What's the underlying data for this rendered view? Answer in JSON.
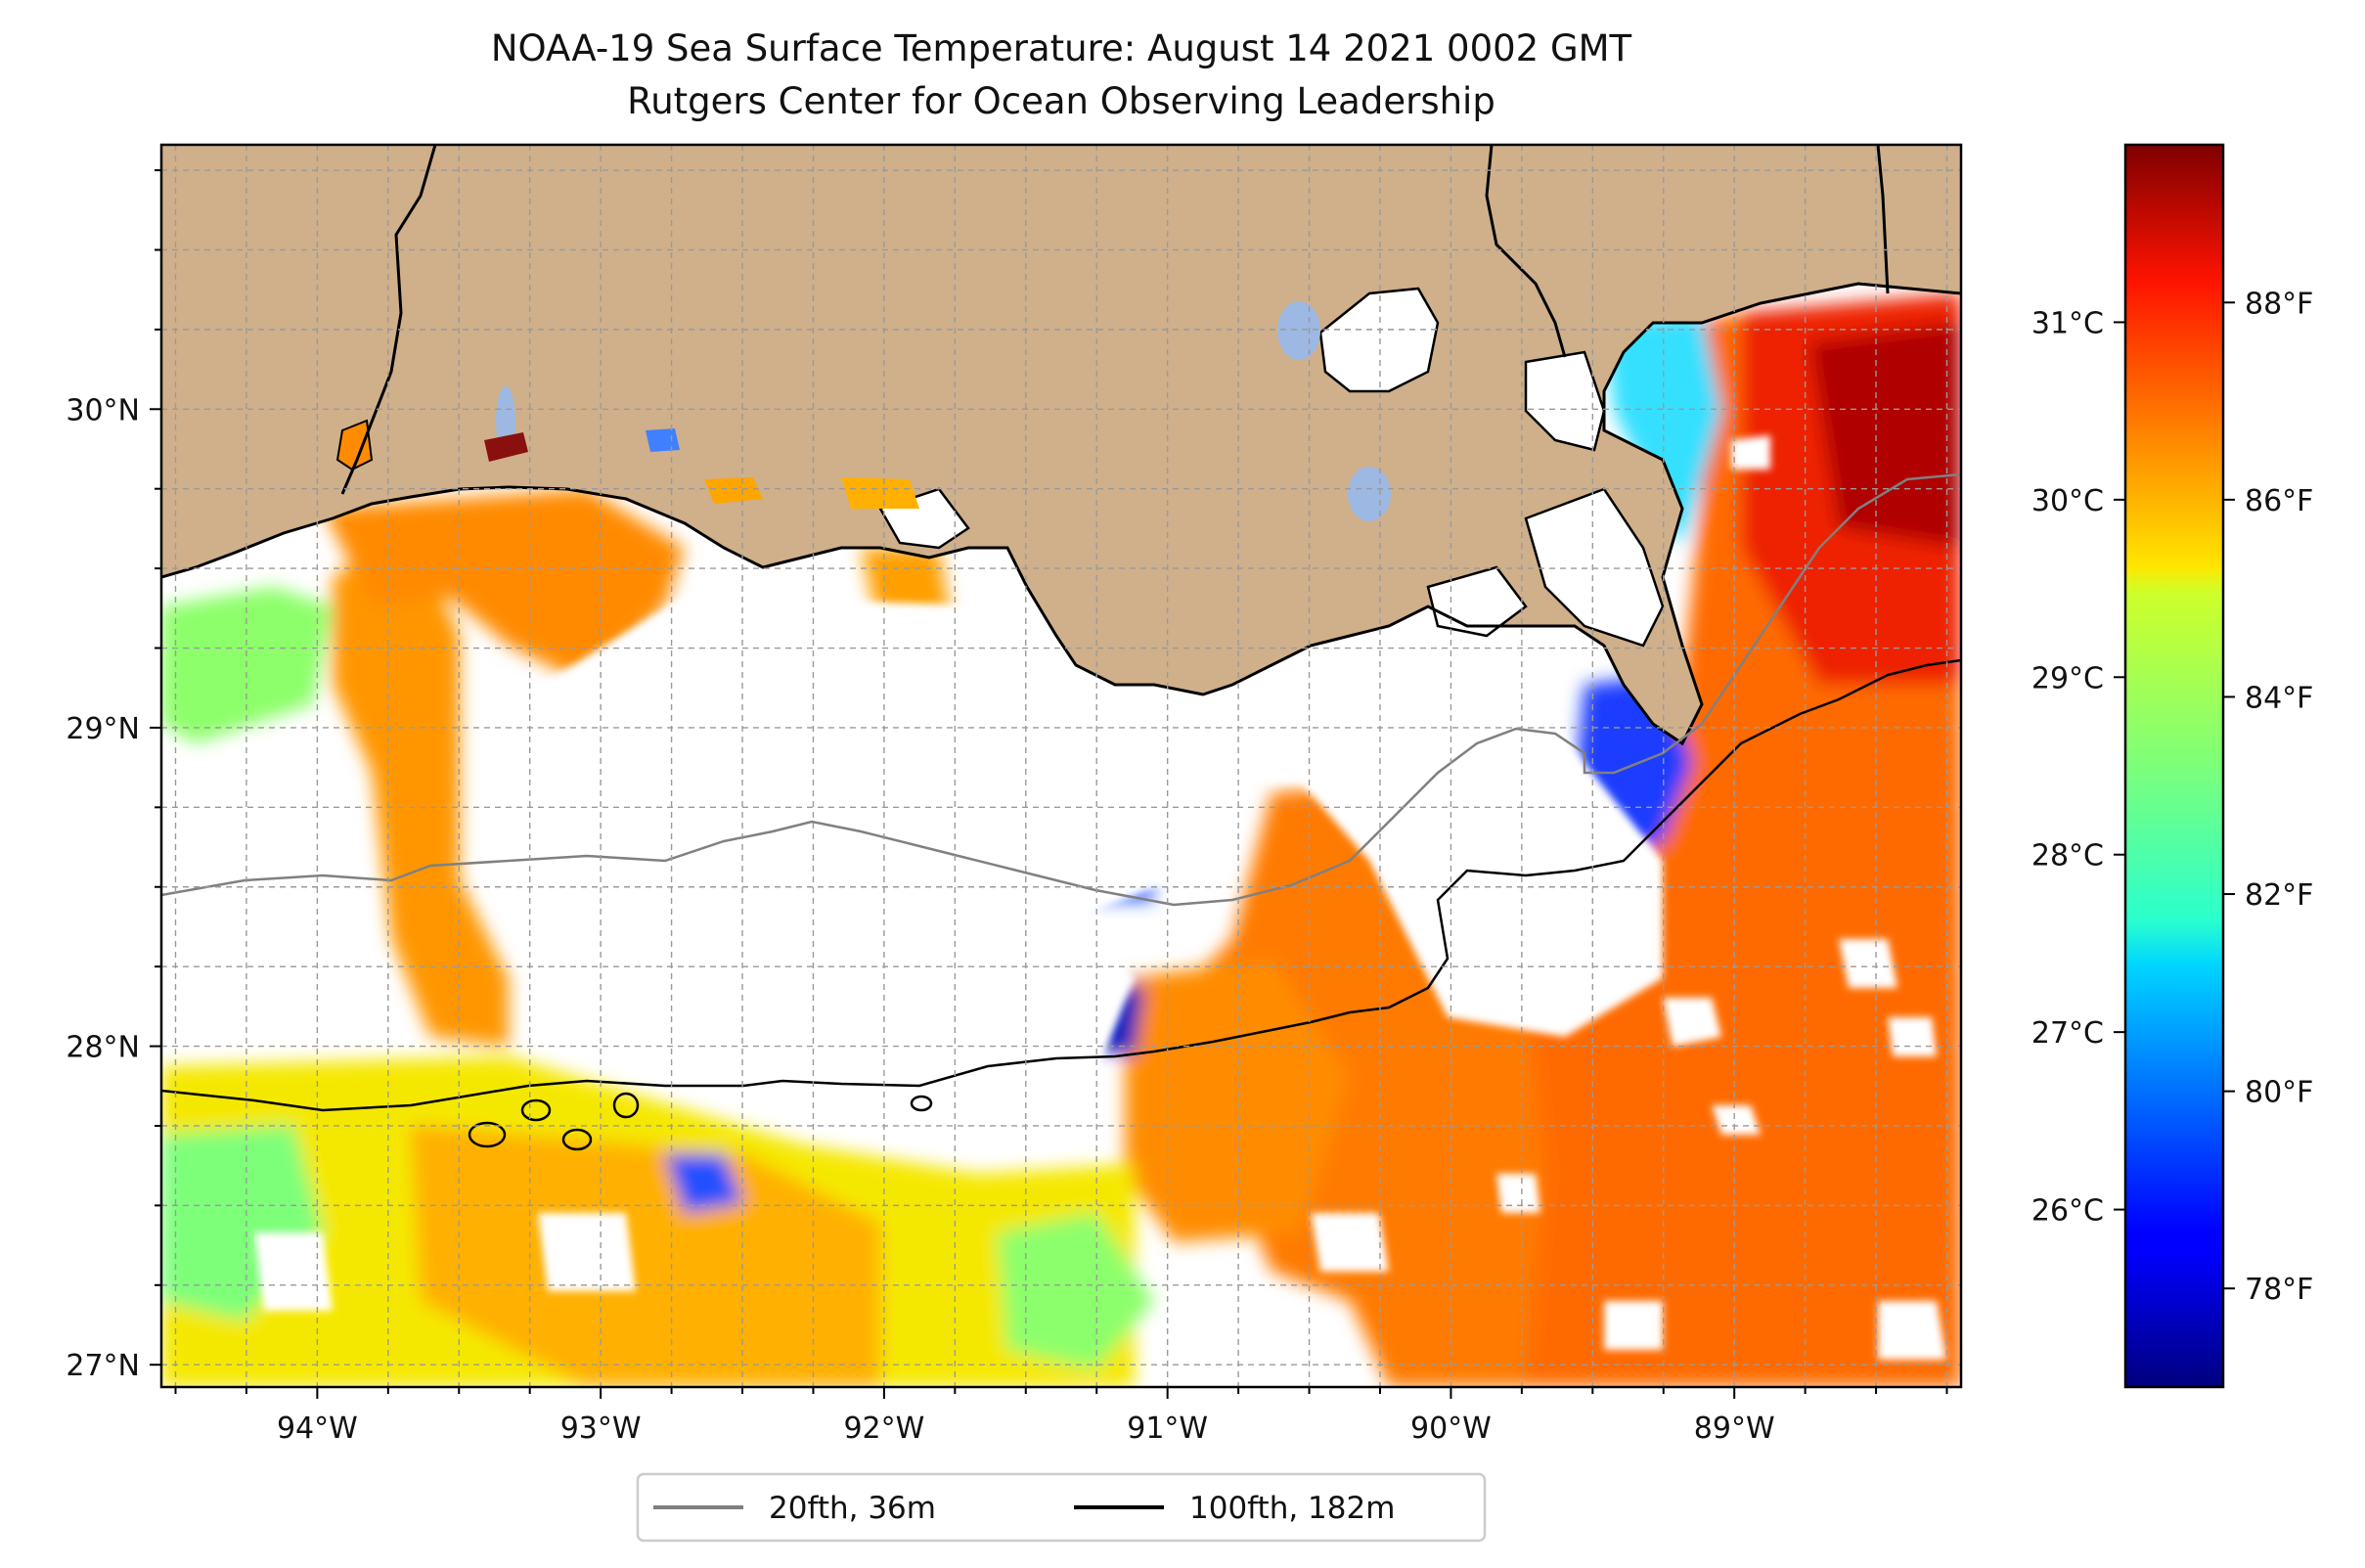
{
  "title_line1": "NOAA-19 Sea Surface Temperature: August 14 2021 0002 GMT",
  "title_line2": "Rutgers Center for Ocean Observing Leadership",
  "colors": {
    "land": "#cfb08b",
    "lake": "#9db8e2",
    "nodata": "#ffffff",
    "contour_20fth": "#808080",
    "contour_100fth": "#000000"
  },
  "map": {
    "lon_range": [
      -94.55,
      -88.2
    ],
    "lat_range": [
      26.93,
      30.83
    ],
    "lon_ticks": [
      {
        "value": -94,
        "label": "94°W"
      },
      {
        "value": -93,
        "label": "93°W"
      },
      {
        "value": -92,
        "label": "92°W"
      },
      {
        "value": -91,
        "label": "91°W"
      },
      {
        "value": -90,
        "label": "90°W"
      },
      {
        "value": -89,
        "label": "89°W"
      }
    ],
    "lat_ticks": [
      {
        "value": 27,
        "label": "27°N"
      },
      {
        "value": 28,
        "label": "28°N"
      },
      {
        "value": 29,
        "label": "29°N"
      },
      {
        "value": 30,
        "label": "30°N"
      }
    ]
  },
  "colorbar": {
    "colormap": "jet",
    "range_c": [
      25.0,
      32.0
    ],
    "celsius_ticks": [
      {
        "value": 26,
        "label": "26°C"
      },
      {
        "value": 27,
        "label": "27°C"
      },
      {
        "value": 28,
        "label": "28°C"
      },
      {
        "value": 29,
        "label": "29°C"
      },
      {
        "value": 30,
        "label": "30°C"
      },
      {
        "value": 31,
        "label": "31°C"
      }
    ],
    "fahrenheit_ticks": [
      {
        "value": 78,
        "label": "78°F"
      },
      {
        "value": 80,
        "label": "80°F"
      },
      {
        "value": 82,
        "label": "82°F"
      },
      {
        "value": 84,
        "label": "84°F"
      },
      {
        "value": 86,
        "label": "86°F"
      },
      {
        "value": 88,
        "label": "88°F"
      }
    ]
  },
  "legend": [
    {
      "label": "20fth, 36m",
      "color": "#808080"
    },
    {
      "label": "100fth, 182m",
      "color": "#000000"
    }
  ]
}
